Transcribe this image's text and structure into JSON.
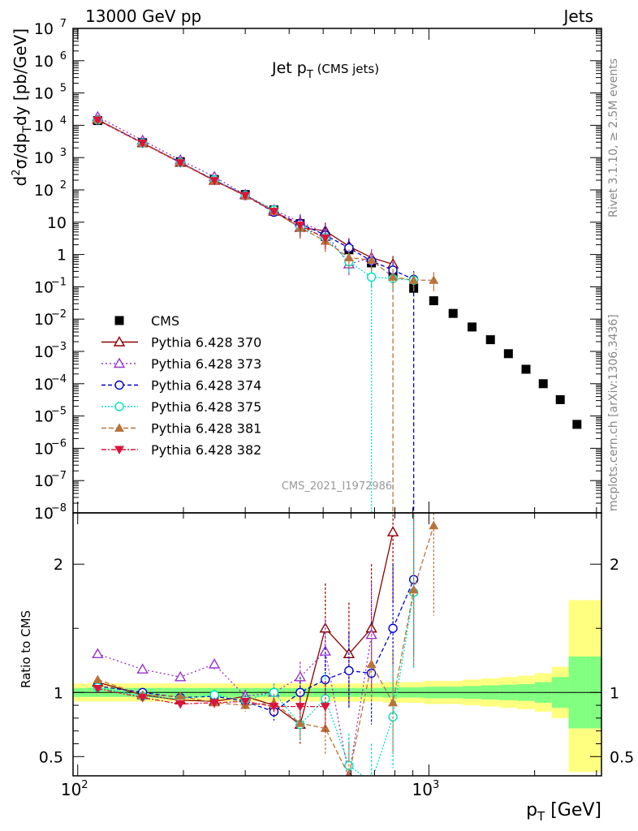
{
  "header": {
    "left": "13000 GeV pp",
    "right": "Jets"
  },
  "side": {
    "rivet": "Rivet 3.1.10, ≥ 2.5M events",
    "mcplots": "mcplots.cern.ch [arXiv:1306.3436]"
  },
  "colors": {
    "cms": "#000000",
    "p370": "#8b0000",
    "p373": "#9932cc",
    "p374": "#0000cd",
    "p375": "#00e0c0",
    "p381": "#b8733a",
    "p382": "#dc143c",
    "band_outer": "#ffff80",
    "band_inner": "#80ff80"
  },
  "chart_data": {
    "type": "scatter",
    "title": "Jet p_T (CMS jets)",
    "title_main": "Jet p",
    "title_sub": "T",
    "title_suffix": "(CMS jets)",
    "watermark": "CMS_2021_I1972986",
    "x_scale": "log",
    "xlim": [
      97,
      3100
    ],
    "xlabel": "p_T [GeV]",
    "xlabel_main": "p",
    "xlabel_sub": "T",
    "xlabel_unit": "[GeV]",
    "x_ticks": [
      "10",
      "2",
      "10",
      "3"
    ],
    "top": {
      "y_scale": "log",
      "ylim": [
        1e-08,
        10000000.0
      ],
      "ylabel": "d²σ/dp_T dy [pb/GeV]",
      "ylabel_parts": [
        "d",
        "2",
        "σ/dp",
        "T",
        "dy [pb/GeV]"
      ],
      "y_ticks": [
        {
          "v": 10000000.0,
          "base": "10",
          "exp": "7"
        },
        {
          "v": 1000000.0,
          "base": "10",
          "exp": "6"
        },
        {
          "v": 100000.0,
          "base": "10",
          "exp": "5"
        },
        {
          "v": 10000.0,
          "base": "10",
          "exp": "4"
        },
        {
          "v": 1000.0,
          "base": "10",
          "exp": "3"
        },
        {
          "v": 100.0,
          "base": "10",
          "exp": "2"
        },
        {
          "v": 10,
          "base": "10",
          "exp": ""
        },
        {
          "v": 1,
          "base": "1",
          "exp": ""
        },
        {
          "v": 0.1,
          "base": "10",
          "exp": "−1"
        },
        {
          "v": 0.01,
          "base": "10",
          "exp": "−2"
        },
        {
          "v": 0.001,
          "base": "10",
          "exp": "−3"
        },
        {
          "v": 0.0001,
          "base": "10",
          "exp": "−4"
        },
        {
          "v": 1e-05,
          "base": "10",
          "exp": "−5"
        },
        {
          "v": 1e-06,
          "base": "10",
          "exp": "−6"
        },
        {
          "v": 1e-07,
          "base": "10",
          "exp": "−7"
        },
        {
          "v": 1e-08,
          "base": "10",
          "exp": "−8"
        }
      ]
    },
    "ratio": {
      "ylim": [
        0.35,
        2.4
      ],
      "ylabel": "Ratio to CMS",
      "y_ticks": [
        {
          "v": 0.5,
          "t": "0.5"
        },
        {
          "v": 1,
          "t": "1"
        },
        {
          "v": 2,
          "t": "2"
        }
      ]
    },
    "legend": {
      "placement": "middle-left"
    },
    "cms": {
      "name": "CMS",
      "x": [
        114,
        153,
        196,
        245,
        300,
        362,
        430,
        507,
        592,
        686,
        790,
        905,
        1032,
        1172,
        1327,
        1497,
        1684,
        1890,
        2116,
        2366,
        2640
      ],
      "y": [
        14000,
        2900,
        750,
        210,
        72,
        24,
        9,
        3.6,
        1.4,
        0.55,
        0.22,
        0.09,
        0.037,
        0.015,
        0.0057,
        0.0023,
        0.00085,
        0.00028,
        0.0001,
        3.2e-05,
        5.5e-06
      ]
    },
    "band": {
      "edges": [
        97,
        135,
        175,
        220,
        270,
        330,
        395,
        468,
        548,
        638,
        737,
        846,
        967,
        1101,
        1248,
        1410,
        1588,
        1784,
        2000,
        2238,
        2500,
        2800,
        3100
      ],
      "outer_lo": [
        0.93,
        0.93,
        0.93,
        0.93,
        0.93,
        0.93,
        0.93,
        0.93,
        0.93,
        0.93,
        0.92,
        0.92,
        0.91,
        0.91,
        0.9,
        0.89,
        0.88,
        0.87,
        0.85,
        0.8,
        0.38,
        0.38
      ],
      "outer_hi": [
        1.07,
        1.07,
        1.07,
        1.07,
        1.07,
        1.07,
        1.07,
        1.07,
        1.07,
        1.07,
        1.08,
        1.08,
        1.09,
        1.09,
        1.1,
        1.11,
        1.12,
        1.13,
        1.15,
        1.2,
        1.72,
        1.72
      ],
      "inner_lo": [
        0.965,
        0.965,
        0.965,
        0.965,
        0.965,
        0.965,
        0.965,
        0.965,
        0.965,
        0.965,
        0.96,
        0.96,
        0.955,
        0.955,
        0.95,
        0.945,
        0.94,
        0.935,
        0.92,
        0.88,
        0.72,
        0.72
      ],
      "inner_hi": [
        1.035,
        1.035,
        1.035,
        1.035,
        1.035,
        1.035,
        1.035,
        1.035,
        1.035,
        1.035,
        1.04,
        1.04,
        1.045,
        1.045,
        1.05,
        1.055,
        1.06,
        1.065,
        1.08,
        1.12,
        1.28,
        1.28
      ]
    },
    "series": [
      {
        "name": "Pythia 6.428 370",
        "color": "#8b0000",
        "marker": "triangle-open",
        "dash": "",
        "x": [
          114,
          153,
          196,
          245,
          300,
          362,
          430,
          507,
          592,
          686,
          790
        ],
        "ratio": [
          1.08,
          0.98,
          0.94,
          0.93,
          0.97,
          0.9,
          0.75,
          1.5,
          1.3,
          1.5,
          2.25
        ],
        "ratio_err": [
          0.02,
          0.02,
          0.03,
          0.04,
          0.05,
          0.08,
          0.15,
          0.35,
          0.4,
          0.5,
          0.55
        ],
        "y": [
          15100,
          2840,
          705,
          195,
          70,
          21.6,
          6.8,
          5.4,
          1.8,
          0.8,
          0.5
        ],
        "drop_x": null
      },
      {
        "name": "Pythia 6.428 373",
        "color": "#9932cc",
        "marker": "triangle-open",
        "dash": "2,3",
        "x": [
          114,
          153,
          196,
          245,
          300,
          362,
          430,
          507,
          592,
          686
        ],
        "ratio": [
          1.3,
          1.18,
          1.12,
          1.22,
          0.97,
          1.0,
          1.12,
          1.32,
          0.35,
          1.45
        ],
        "ratio_err": [
          0.02,
          0.03,
          0.03,
          0.04,
          0.05,
          0.07,
          0.12,
          0.25,
          0.3,
          0.4
        ],
        "y": [
          18200,
          3420,
          840,
          256,
          70,
          24,
          10,
          4.8,
          0.5,
          0.8
        ],
        "drop_x": null
      },
      {
        "name": "Pythia 6.428 374",
        "color": "#0000cd",
        "marker": "circle-open",
        "dash": "5,3",
        "x": [
          114,
          153,
          196,
          245,
          300,
          362,
          430,
          507,
          592,
          686,
          790,
          905
        ],
        "ratio": [
          1.05,
          1.0,
          0.96,
          0.97,
          0.93,
          0.85,
          1.0,
          1.1,
          1.17,
          1.15,
          1.5,
          1.88
        ],
        "ratio_err": [
          0.02,
          0.02,
          0.03,
          0.04,
          0.05,
          0.07,
          0.12,
          0.25,
          0.3,
          0.4,
          0.5,
          0.6
        ],
        "y": [
          14700,
          2900,
          720,
          204,
          67,
          20.4,
          9,
          4,
          1.6,
          0.63,
          0.33,
          0.17
        ],
        "drop_x": 905
      },
      {
        "name": "Pythia 6.428 375",
        "color": "#00e0c0",
        "marker": "circle-open",
        "dash": "2,2",
        "x": [
          114,
          153,
          196,
          245,
          300,
          362,
          430,
          507,
          592,
          686,
          790,
          905
        ],
        "ratio": [
          1.04,
          0.97,
          0.95,
          0.98,
          0.94,
          1.0,
          0.75,
          0.95,
          0.43,
          0.3,
          0.81,
          1.78
        ],
        "ratio_err": [
          0.02,
          0.02,
          0.03,
          0.04,
          0.05,
          0.07,
          0.12,
          0.2,
          0.25,
          0.3,
          0.4,
          0.6
        ],
        "y": [
          14600,
          2810,
          712,
          206,
          68,
          24,
          6.8,
          3.4,
          0.6,
          0.2,
          0.18,
          0.16
        ],
        "drop_x": 686
      },
      {
        "name": "Pythia 6.428 381",
        "color": "#b8733a",
        "marker": "triangle-filled",
        "dash": "6,3",
        "x": [
          114,
          153,
          196,
          245,
          300,
          362,
          430,
          507,
          592,
          686,
          790,
          905,
          1032
        ],
        "ratio": [
          1.1,
          0.98,
          0.97,
          0.92,
          0.9,
          0.92,
          0.76,
          0.72,
          0.35,
          1.22,
          0.92,
          1.8,
          2.3
        ],
        "ratio_err": [
          0.02,
          0.02,
          0.03,
          0.04,
          0.05,
          0.07,
          0.12,
          0.2,
          0.25,
          0.3,
          0.4,
          0.6,
          0.7
        ],
        "y": [
          15400,
          2840,
          728,
          193,
          65,
          22,
          6.8,
          2.6,
          0.8,
          0.67,
          0.2,
          0.16,
          0.16
        ],
        "drop_x": 790
      },
      {
        "name": "Pythia 6.428 382",
        "color": "#dc143c",
        "marker": "triangle-down-filled",
        "dash": "6,2,2,2",
        "x": [
          114,
          153,
          196,
          245,
          300,
          362,
          430,
          507
        ],
        "ratio": [
          1.03,
          0.96,
          0.91,
          0.92,
          0.93,
          0.89,
          0.89,
          0.89
        ],
        "ratio_err": [
          0.02,
          0.02,
          0.03,
          0.04,
          0.05,
          0.07,
          0.12,
          0.2
        ],
        "y": [
          14400,
          2780,
          683,
          193,
          67,
          21.4,
          8,
          3.2
        ],
        "drop_x": null
      }
    ]
  }
}
